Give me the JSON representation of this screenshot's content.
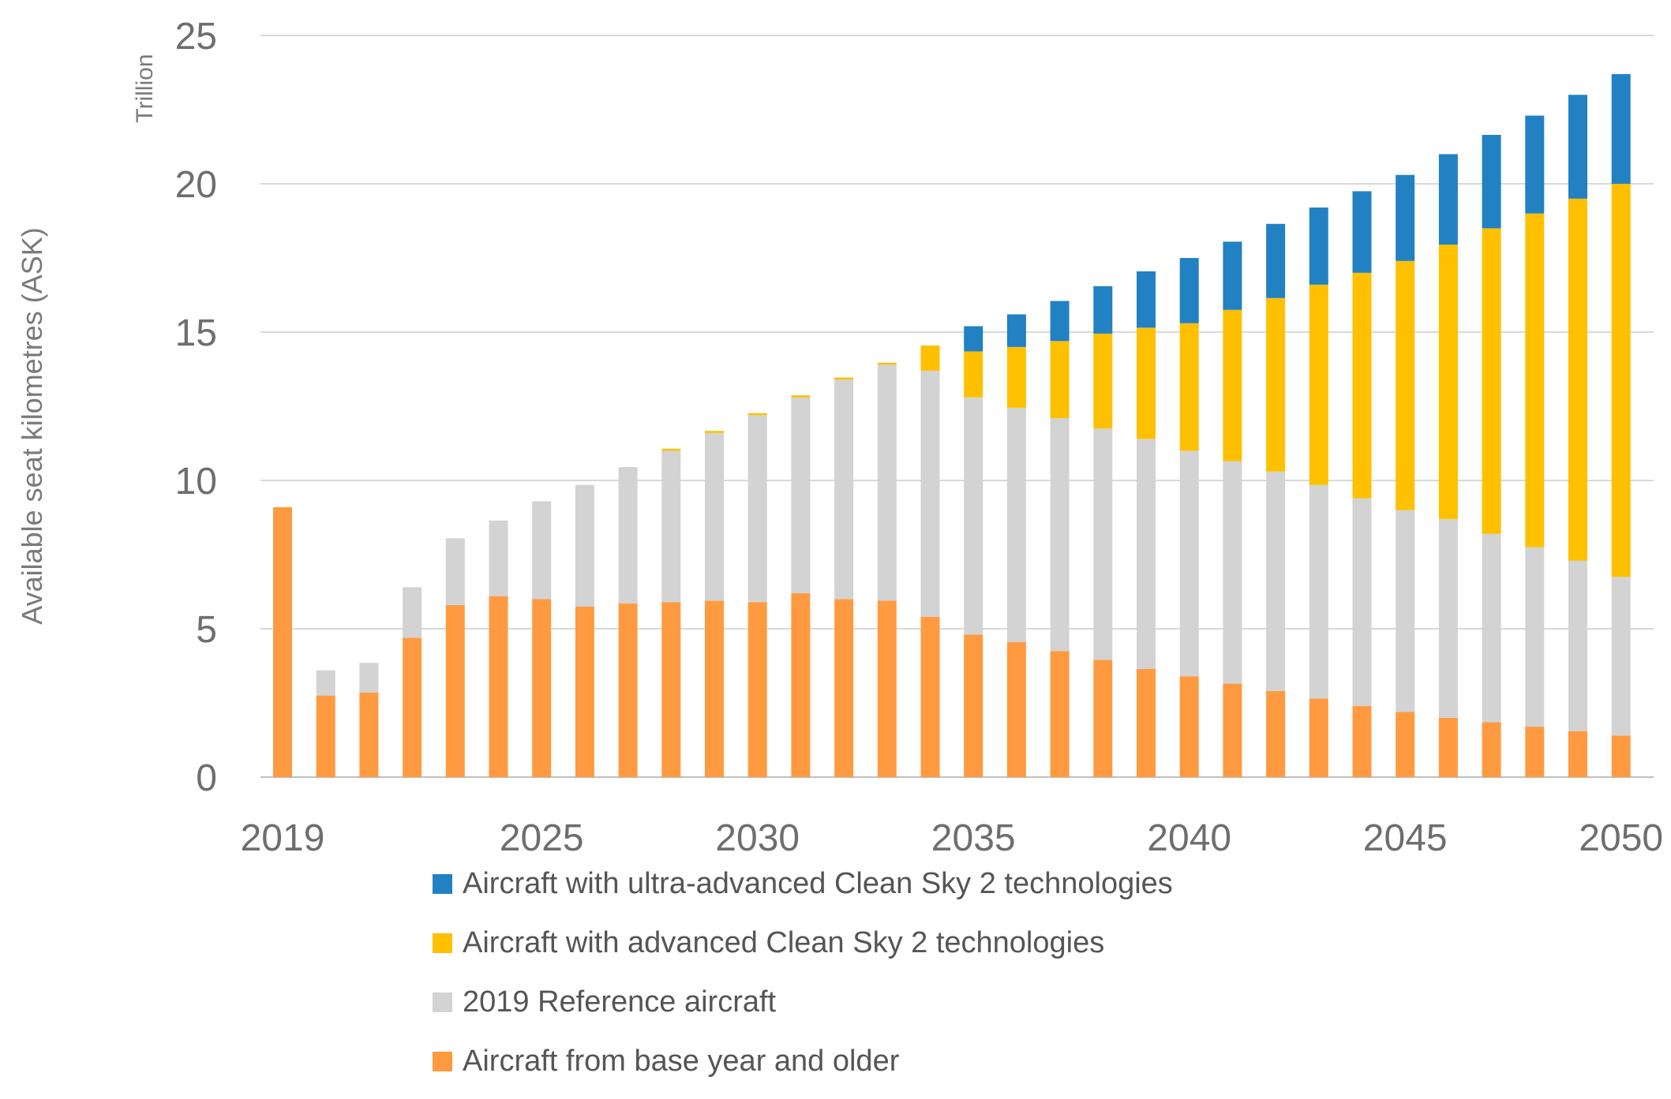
{
  "chart_data": {
    "type": "bar",
    "stacked": true,
    "title": "",
    "ylabel": "Available seat kilometres (ASK)",
    "yunit": "Trillion",
    "xlabel": "",
    "ylim": [
      0,
      25
    ],
    "yticks": [
      "0",
      "5",
      "10",
      "15",
      "20",
      "25"
    ],
    "ytick_values": [
      0,
      5,
      10,
      15,
      20,
      25
    ],
    "grid": true,
    "legend_position": "bottom",
    "categories": [
      2019,
      2020,
      2021,
      2022,
      2023,
      2024,
      2025,
      2026,
      2027,
      2028,
      2029,
      2030,
      2031,
      2032,
      2033,
      2034,
      2035,
      2036,
      2037,
      2038,
      2039,
      2040,
      2041,
      2042,
      2043,
      2044,
      2045,
      2046,
      2047,
      2048,
      2049,
      2050
    ],
    "xtick_labels": [
      {
        "year": 2019,
        "label": "2019"
      },
      {
        "year": 2025,
        "label": "2025"
      },
      {
        "year": 2030,
        "label": "2030"
      },
      {
        "year": 2035,
        "label": "2035"
      },
      {
        "year": 2040,
        "label": "2040"
      },
      {
        "year": 2045,
        "label": "2045"
      },
      {
        "year": 2050,
        "label": "2050"
      }
    ],
    "series": [
      {
        "name": "Aircraft from base year and older",
        "color": "#FF9A40",
        "values": [
          9.1,
          2.75,
          2.85,
          4.7,
          5.8,
          6.1,
          6.0,
          5.75,
          5.85,
          5.9,
          5.95,
          5.9,
          6.2,
          6.0,
          5.95,
          5.4,
          4.8,
          4.55,
          4.25,
          3.95,
          3.65,
          3.4,
          3.15,
          2.9,
          2.65,
          2.4,
          2.2,
          2.0,
          1.85,
          1.7,
          1.55,
          1.4
        ]
      },
      {
        "name": "2019 Reference aircraft",
        "color": "#D3D3D3",
        "values": [
          0,
          0.85,
          1.0,
          1.7,
          2.25,
          2.55,
          3.3,
          4.1,
          4.6,
          5.1,
          5.65,
          6.3,
          6.6,
          7.4,
          7.95,
          8.3,
          8.0,
          7.9,
          7.85,
          7.8,
          7.75,
          7.6,
          7.5,
          7.4,
          7.2,
          7.0,
          6.8,
          6.7,
          6.35,
          6.05,
          5.75,
          5.35
        ]
      },
      {
        "name": "Aircraft with advanced Clean Sky 2 technologies",
        "color": "#FFC000",
        "values": [
          0,
          0,
          0,
          0,
          0,
          0,
          0,
          0,
          0,
          0.07,
          0.07,
          0.07,
          0.07,
          0.07,
          0.07,
          0.85,
          1.55,
          2.05,
          2.6,
          3.2,
          3.75,
          4.3,
          5.1,
          5.85,
          6.75,
          7.6,
          8.4,
          9.25,
          10.3,
          11.25,
          12.2,
          13.25
        ]
      },
      {
        "name": "Aircraft with ultra-advanced Clean Sky 2 technologies",
        "color": "#2281C3",
        "values": [
          0,
          0,
          0,
          0,
          0,
          0,
          0,
          0,
          0,
          0,
          0,
          0,
          0,
          0,
          0,
          0,
          0.85,
          1.1,
          1.35,
          1.6,
          1.9,
          2.2,
          2.3,
          2.5,
          2.6,
          2.75,
          2.9,
          3.05,
          3.15,
          3.3,
          3.5,
          3.7
        ]
      }
    ],
    "legend_order": [
      "Aircraft with ultra-advanced Clean Sky 2 technologies",
      "Aircraft with advanced Clean Sky 2 technologies",
      "2019 Reference aircraft",
      "Aircraft from base year and older"
    ]
  }
}
